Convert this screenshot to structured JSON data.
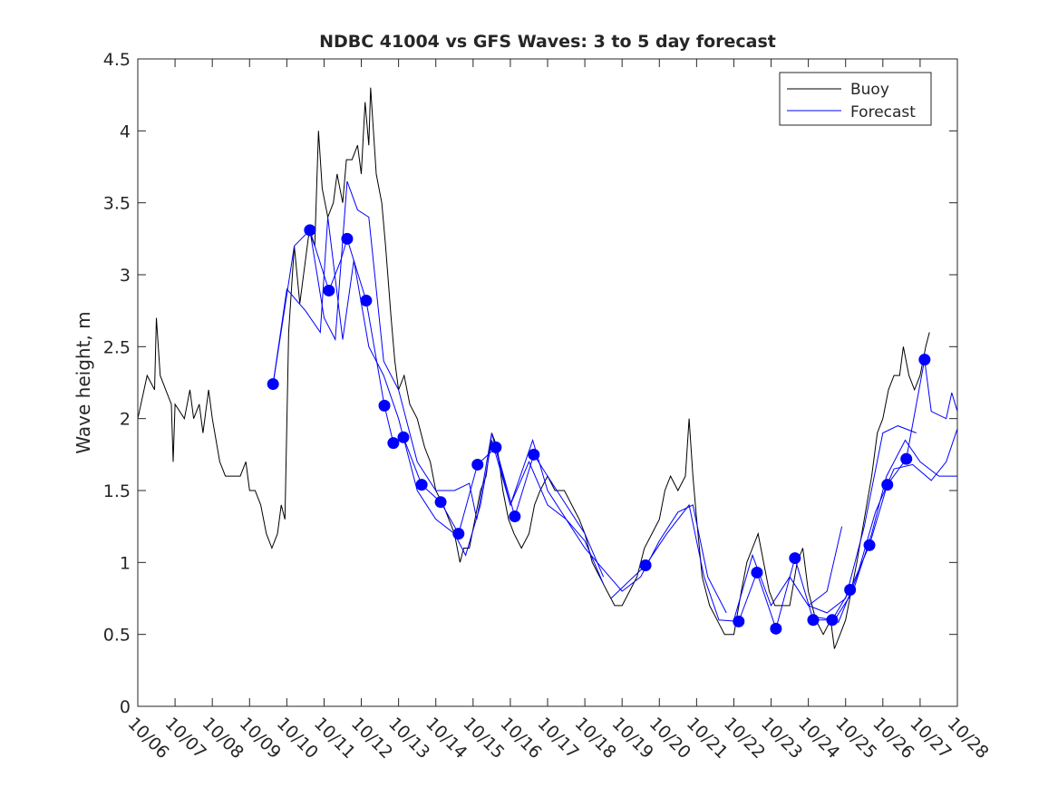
{
  "chart_data": {
    "type": "line",
    "title": "NDBC 41004 vs GFS Waves: 3 to 5 day forecast",
    "xlabel": "",
    "ylabel": "Wave height, m",
    "ylim": [
      0,
      4.5
    ],
    "yticks": [
      0,
      0.5,
      1,
      1.5,
      2,
      2.5,
      3,
      3.5,
      4,
      4.5
    ],
    "ytick_labels": [
      "0",
      "0.5",
      "1",
      "1.5",
      "2",
      "2.5",
      "3",
      "3.5",
      "4",
      "4.5"
    ],
    "xlim_days_since_1006": [
      0,
      22
    ],
    "xtick_labels": [
      "10/06",
      "10/07",
      "10/08",
      "10/09",
      "10/10",
      "10/11",
      "10/12",
      "10/13",
      "10/14",
      "10/15",
      "10/16",
      "10/17",
      "10/18",
      "10/19",
      "10/20",
      "10/21",
      "10/22",
      "10/23",
      "10/24",
      "10/25",
      "10/26",
      "10/27",
      "10/28"
    ],
    "legend": {
      "position": "top-right",
      "entries": [
        "Buoy",
        "Forecast"
      ]
    },
    "colors": {
      "buoy": "#000000",
      "forecast": "#0000ff"
    },
    "buoy": [
      [
        0,
        2.0
      ],
      [
        0.25,
        2.3
      ],
      [
        0.45,
        2.2
      ],
      [
        0.5,
        2.7
      ],
      [
        0.6,
        2.3
      ],
      [
        0.75,
        2.2
      ],
      [
        0.9,
        2.1
      ],
      [
        0.95,
        1.7
      ],
      [
        1.0,
        2.1
      ],
      [
        1.25,
        2.0
      ],
      [
        1.4,
        2.2
      ],
      [
        1.5,
        2.0
      ],
      [
        1.65,
        2.1
      ],
      [
        1.75,
        1.9
      ],
      [
        1.9,
        2.2
      ],
      [
        2.0,
        2.0
      ],
      [
        2.2,
        1.7
      ],
      [
        2.35,
        1.6
      ],
      [
        2.5,
        1.6
      ],
      [
        2.75,
        1.6
      ],
      [
        2.9,
        1.7
      ],
      [
        3.0,
        1.5
      ],
      [
        3.15,
        1.5
      ],
      [
        3.3,
        1.4
      ],
      [
        3.45,
        1.2
      ],
      [
        3.6,
        1.1
      ],
      [
        3.75,
        1.2
      ],
      [
        3.85,
        1.4
      ],
      [
        3.95,
        1.3
      ],
      [
        4.05,
        2.6
      ],
      [
        4.2,
        3.2
      ],
      [
        4.35,
        2.8
      ],
      [
        4.5,
        3.1
      ],
      [
        4.6,
        3.3
      ],
      [
        4.75,
        3.2
      ],
      [
        4.85,
        4.0
      ],
      [
        4.95,
        3.6
      ],
      [
        5.1,
        3.4
      ],
      [
        5.25,
        3.5
      ],
      [
        5.35,
        3.7
      ],
      [
        5.5,
        3.5
      ],
      [
        5.6,
        3.8
      ],
      [
        5.75,
        3.8
      ],
      [
        5.9,
        3.9
      ],
      [
        6.0,
        3.7
      ],
      [
        6.1,
        4.2
      ],
      [
        6.2,
        3.9
      ],
      [
        6.25,
        4.3
      ],
      [
        6.4,
        3.7
      ],
      [
        6.55,
        3.5
      ],
      [
        6.65,
        3.2
      ],
      [
        6.8,
        2.7
      ],
      [
        6.9,
        2.4
      ],
      [
        7.0,
        2.2
      ],
      [
        7.15,
        2.3
      ],
      [
        7.3,
        2.1
      ],
      [
        7.5,
        2.0
      ],
      [
        7.7,
        1.8
      ],
      [
        7.85,
        1.7
      ],
      [
        8.0,
        1.5
      ],
      [
        8.2,
        1.4
      ],
      [
        8.35,
        1.3
      ],
      [
        8.5,
        1.2
      ],
      [
        8.65,
        1.0
      ],
      [
        8.75,
        1.1
      ],
      [
        8.9,
        1.1
      ],
      [
        9.05,
        1.3
      ],
      [
        9.2,
        1.5
      ],
      [
        9.35,
        1.6
      ],
      [
        9.5,
        1.9
      ],
      [
        9.65,
        1.8
      ],
      [
        9.8,
        1.5
      ],
      [
        9.95,
        1.3
      ],
      [
        10.1,
        1.2
      ],
      [
        10.3,
        1.1
      ],
      [
        10.5,
        1.2
      ],
      [
        10.65,
        1.4
      ],
      [
        10.8,
        1.5
      ],
      [
        11.0,
        1.6
      ],
      [
        11.2,
        1.5
      ],
      [
        11.45,
        1.5
      ],
      [
        11.65,
        1.4
      ],
      [
        11.85,
        1.3
      ],
      [
        12.0,
        1.2
      ],
      [
        12.2,
        1.0
      ],
      [
        12.4,
        0.9
      ],
      [
        12.6,
        0.8
      ],
      [
        12.8,
        0.7
      ],
      [
        13.0,
        0.7
      ],
      [
        13.2,
        0.8
      ],
      [
        13.4,
        0.9
      ],
      [
        13.6,
        1.1
      ],
      [
        13.8,
        1.2
      ],
      [
        14.0,
        1.3
      ],
      [
        14.15,
        1.5
      ],
      [
        14.3,
        1.6
      ],
      [
        14.5,
        1.5
      ],
      [
        14.7,
        1.6
      ],
      [
        14.8,
        2.0
      ],
      [
        14.9,
        1.6
      ],
      [
        15.0,
        1.3
      ],
      [
        15.15,
        0.9
      ],
      [
        15.35,
        0.7
      ],
      [
        15.55,
        0.6
      ],
      [
        15.75,
        0.5
      ],
      [
        16.0,
        0.5
      ],
      [
        16.2,
        0.8
      ],
      [
        16.35,
        1.0
      ],
      [
        16.5,
        1.1
      ],
      [
        16.65,
        1.2
      ],
      [
        16.8,
        1.0
      ],
      [
        16.95,
        0.8
      ],
      [
        17.1,
        0.7
      ],
      [
        17.3,
        0.7
      ],
      [
        17.5,
        0.7
      ],
      [
        17.7,
        1.0
      ],
      [
        17.85,
        1.1
      ],
      [
        18.0,
        0.8
      ],
      [
        18.2,
        0.6
      ],
      [
        18.4,
        0.5
      ],
      [
        18.6,
        0.6
      ],
      [
        18.7,
        0.4
      ],
      [
        18.85,
        0.5
      ],
      [
        19.0,
        0.6
      ],
      [
        19.15,
        0.8
      ],
      [
        19.3,
        1.0
      ],
      [
        19.5,
        1.3
      ],
      [
        19.7,
        1.6
      ],
      [
        19.85,
        1.9
      ],
      [
        20.0,
        2.0
      ],
      [
        20.15,
        2.2
      ],
      [
        20.3,
        2.3
      ],
      [
        20.45,
        2.3
      ],
      [
        20.55,
        2.5
      ],
      [
        20.7,
        2.3
      ],
      [
        20.85,
        2.2
      ],
      [
        21.0,
        2.3
      ],
      [
        21.15,
        2.5
      ],
      [
        21.25,
        2.6
      ]
    ],
    "forecast_series": [
      [
        [
          3.63,
          2.24
        ],
        [
          4.2,
          3.2
        ],
        [
          4.62,
          3.31
        ],
        [
          5.13,
          2.89
        ],
        [
          5.45,
          3.1
        ],
        [
          5.62,
          3.25
        ],
        [
          6.13,
          2.82
        ],
        [
          6.62,
          2.09
        ],
        [
          6.86,
          1.83
        ],
        [
          7.13,
          1.87
        ],
        [
          7.62,
          1.54
        ],
        [
          8.13,
          1.42
        ],
        [
          8.61,
          1.2
        ],
        [
          9.12,
          1.68
        ],
        [
          9.61,
          1.8
        ],
        [
          10.12,
          1.32
        ],
        [
          10.63,
          1.75
        ],
        [
          11.0,
          1.6
        ],
        [
          11.5,
          1.4
        ],
        [
          12.0,
          1.2
        ],
        [
          12.5,
          0.9
        ]
      ],
      [
        [
          3.63,
          2.24
        ],
        [
          4.0,
          2.9
        ],
        [
          4.5,
          2.75
        ],
        [
          4.9,
          2.6
        ],
        [
          5.1,
          3.4
        ],
        [
          5.5,
          2.55
        ],
        [
          5.8,
          3.1
        ],
        [
          6.2,
          2.5
        ],
        [
          6.6,
          2.3
        ],
        [
          7.0,
          2.0
        ],
        [
          7.5,
          1.5
        ],
        [
          8.0,
          1.3
        ],
        [
          8.5,
          1.2
        ],
        [
          8.8,
          1.05
        ],
        [
          9.2,
          1.4
        ],
        [
          9.5,
          1.85
        ],
        [
          10.0,
          1.4
        ],
        [
          10.5,
          1.7
        ],
        [
          11.0,
          1.4
        ],
        [
          11.5,
          1.3
        ],
        [
          12.0,
          1.15
        ],
        [
          12.5,
          0.85
        ]
      ],
      [
        [
          4.62,
          3.31
        ],
        [
          5.0,
          2.7
        ],
        [
          5.3,
          2.55
        ],
        [
          5.62,
          3.65
        ],
        [
          5.9,
          3.45
        ],
        [
          6.2,
          3.4
        ],
        [
          6.6,
          2.4
        ],
        [
          7.0,
          2.2
        ],
        [
          7.5,
          1.7
        ],
        [
          8.0,
          1.5
        ],
        [
          8.5,
          1.5
        ],
        [
          8.9,
          1.55
        ],
        [
          9.1,
          1.3
        ],
        [
          9.5,
          1.9
        ],
        [
          10.0,
          1.4
        ],
        [
          10.6,
          1.85
        ],
        [
          11.0,
          1.5
        ],
        [
          12.0,
          1.1
        ],
        [
          13.0,
          0.8
        ],
        [
          13.5,
          0.9
        ],
        [
          14.0,
          1.15
        ],
        [
          14.5,
          1.35
        ],
        [
          14.9,
          1.4
        ],
        [
          15.3,
          0.9
        ],
        [
          15.8,
          0.65
        ]
      ],
      [
        [
          12.7,
          0.75
        ],
        [
          13.63,
          0.98
        ],
        [
          14.2,
          1.2
        ],
        [
          14.8,
          1.4
        ],
        [
          15.2,
          0.9
        ],
        [
          15.6,
          0.6
        ],
        [
          16.13,
          0.59
        ],
        [
          16.62,
          0.93
        ],
        [
          17.13,
          0.54
        ],
        [
          17.64,
          1.03
        ],
        [
          18.13,
          0.6
        ],
        [
          18.64,
          0.6
        ],
        [
          19.12,
          0.81
        ],
        [
          19.64,
          1.12
        ],
        [
          20.12,
          1.54
        ],
        [
          20.63,
          1.72
        ],
        [
          21.12,
          2.41
        ],
        [
          21.3,
          2.05
        ],
        [
          21.7,
          2.0
        ],
        [
          21.85,
          2.18
        ],
        [
          22.0,
          2.05
        ]
      ],
      [
        [
          16.0,
          0.6
        ],
        [
          16.5,
          1.05
        ],
        [
          17.0,
          0.7
        ],
        [
          17.5,
          0.9
        ],
        [
          18.0,
          0.7
        ],
        [
          18.5,
          0.8
        ],
        [
          18.9,
          1.25
        ]
      ],
      [
        [
          18.0,
          0.7
        ],
        [
          18.5,
          0.65
        ],
        [
          19.0,
          0.75
        ],
        [
          19.5,
          1.25
        ],
        [
          20.0,
          1.9
        ],
        [
          20.4,
          1.95
        ],
        [
          20.9,
          1.9
        ]
      ],
      [
        [
          18.2,
          0.62
        ],
        [
          18.7,
          0.6
        ],
        [
          19.2,
          0.8
        ],
        [
          19.7,
          1.2
        ],
        [
          20.1,
          1.6
        ],
        [
          20.6,
          1.85
        ],
        [
          21.0,
          1.7
        ],
        [
          21.5,
          1.6
        ],
        [
          22.0,
          1.6
        ]
      ],
      [
        [
          18.8,
          0.58
        ],
        [
          19.3,
          0.9
        ],
        [
          19.8,
          1.35
        ],
        [
          20.3,
          1.65
        ],
        [
          20.8,
          1.68
        ],
        [
          21.3,
          1.57
        ],
        [
          21.7,
          1.7
        ],
        [
          22.0,
          1.93
        ]
      ]
    ],
    "forecast_markers": [
      [
        3.63,
        2.24
      ],
      [
        4.62,
        3.31
      ],
      [
        5.13,
        2.89
      ],
      [
        5.62,
        3.25
      ],
      [
        6.13,
        2.82
      ],
      [
        6.62,
        2.09
      ],
      [
        6.86,
        1.83
      ],
      [
        7.13,
        1.87
      ],
      [
        7.62,
        1.54
      ],
      [
        8.13,
        1.42
      ],
      [
        8.61,
        1.2
      ],
      [
        9.12,
        1.68
      ],
      [
        9.61,
        1.8
      ],
      [
        10.12,
        1.32
      ],
      [
        10.63,
        1.75
      ],
      [
        13.63,
        0.98
      ],
      [
        16.13,
        0.59
      ],
      [
        16.62,
        0.93
      ],
      [
        17.13,
        0.54
      ],
      [
        17.64,
        1.03
      ],
      [
        18.13,
        0.6
      ],
      [
        18.64,
        0.6
      ],
      [
        19.12,
        0.81
      ],
      [
        19.64,
        1.12
      ],
      [
        20.12,
        1.54
      ],
      [
        20.63,
        1.72
      ],
      [
        21.12,
        2.41
      ]
    ]
  }
}
